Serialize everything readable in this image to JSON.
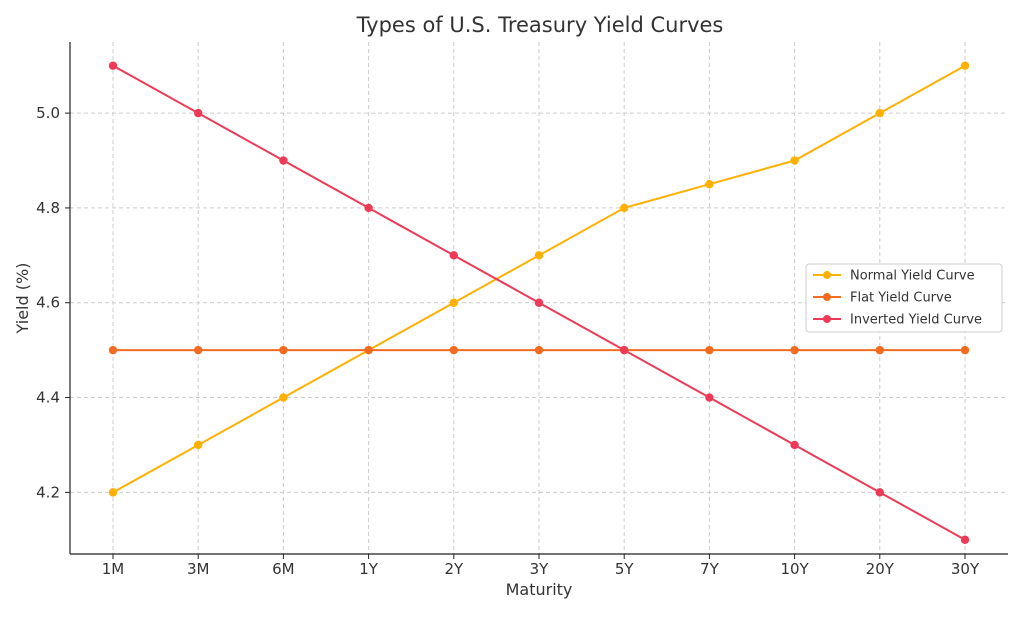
{
  "chart_data": {
    "type": "line",
    "title": "Types of U.S. Treasury Yield Curves",
    "xlabel": "Maturity",
    "ylabel": "Yield (%)",
    "categories": [
      "1M",
      "3M",
      "6M",
      "1Y",
      "2Y",
      "3Y",
      "5Y",
      "7Y",
      "10Y",
      "20Y",
      "30Y"
    ],
    "ylim": [
      4.07,
      5.15
    ],
    "yticks": [
      4.2,
      4.4,
      4.6,
      4.8,
      5.0
    ],
    "ytick_labels": [
      "4.2",
      "4.4",
      "4.6",
      "4.8",
      "5.0"
    ],
    "grid": true,
    "legend_position": "center-right",
    "series": [
      {
        "name": "Normal Yield Curve",
        "color": "#FFB000",
        "values": [
          4.2,
          4.3,
          4.4,
          4.5,
          4.6,
          4.7,
          4.8,
          4.85,
          4.9,
          5.0,
          5.1
        ]
      },
      {
        "name": "Flat Yield Curve",
        "color": "#F26B21",
        "values": [
          4.5,
          4.5,
          4.5,
          4.5,
          4.5,
          4.5,
          4.5,
          4.5,
          4.5,
          4.5,
          4.5
        ]
      },
      {
        "name": "Inverted Yield Curve",
        "color": "#EC3A57",
        "values": [
          5.1,
          5.0,
          4.9,
          4.8,
          4.7,
          4.6,
          4.5,
          4.4,
          4.3,
          4.2,
          4.1
        ]
      }
    ]
  }
}
